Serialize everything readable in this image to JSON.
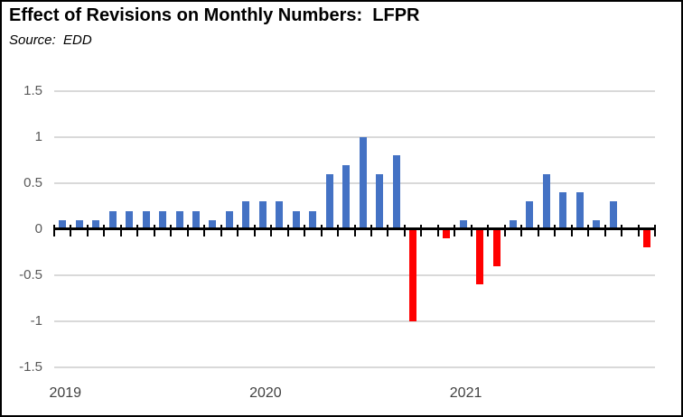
{
  "header": {
    "title": "Effect of Revisions on Monthly Numbers:  LFPR",
    "source": "Source:  EDD"
  },
  "colors": {
    "positive_bar": "#4472C4",
    "negative_bar": "#FF0000",
    "gridline": "#D9D9D9",
    "axis": "#000000",
    "y_label": "#595959",
    "x_label": "#404040",
    "title": "#000000"
  },
  "chart_data": {
    "type": "bar",
    "title": "Effect of Revisions on Monthly Numbers:  LFPR",
    "subtitle": "Source:  EDD",
    "xlabel": "",
    "ylabel": "",
    "ylim": [
      -1.5,
      1.5
    ],
    "grid": true,
    "legend": false,
    "x": [
      "Jan 2019",
      "Feb 2019",
      "Mar 2019",
      "Apr 2019",
      "May 2019",
      "Jun 2019",
      "Jul 2019",
      "Aug 2019",
      "Sep 2019",
      "Oct 2019",
      "Nov 2019",
      "Dec 2019",
      "Jan 2020",
      "Feb 2020",
      "Mar 2020",
      "Apr 2020",
      "May 2020",
      "Jun 2020",
      "Jul 2020",
      "Aug 2020",
      "Sep 2020",
      "Oct 2020",
      "Nov 2020",
      "Dec 2020",
      "Jan 2021",
      "Feb 2021",
      "Mar 2021",
      "Apr 2021",
      "May 2021",
      "Jun 2021",
      "Jul 2021",
      "Aug 2021",
      "Sep 2021",
      "Oct 2021",
      "Nov 2021",
      "Dec 2021"
    ],
    "values": [
      0.1,
      0.1,
      0.1,
      0.2,
      0.2,
      0.2,
      0.2,
      0.2,
      0.2,
      0.1,
      0.2,
      0.3,
      0.3,
      0.3,
      0.2,
      0.2,
      0.6,
      0.7,
      1.0,
      0.6,
      0.8,
      -1.0,
      0,
      -0.1,
      0.1,
      -0.6,
      -0.4,
      0.1,
      0.3,
      0.6,
      0.4,
      0.4,
      0.1,
      0.3,
      0,
      -0.2
    ],
    "y_tick_labels": [
      "1.5",
      "1",
      "0.5",
      "0",
      "-0.5",
      "-1",
      "-1.5"
    ],
    "y_tick_values": [
      1.5,
      1,
      0.5,
      0,
      -0.5,
      -1,
      -1.5
    ],
    "year_labels": [
      {
        "label": "2019",
        "slot": 0
      },
      {
        "label": "2020",
        "slot": 12
      },
      {
        "label": "2021",
        "slot": 24
      }
    ]
  }
}
